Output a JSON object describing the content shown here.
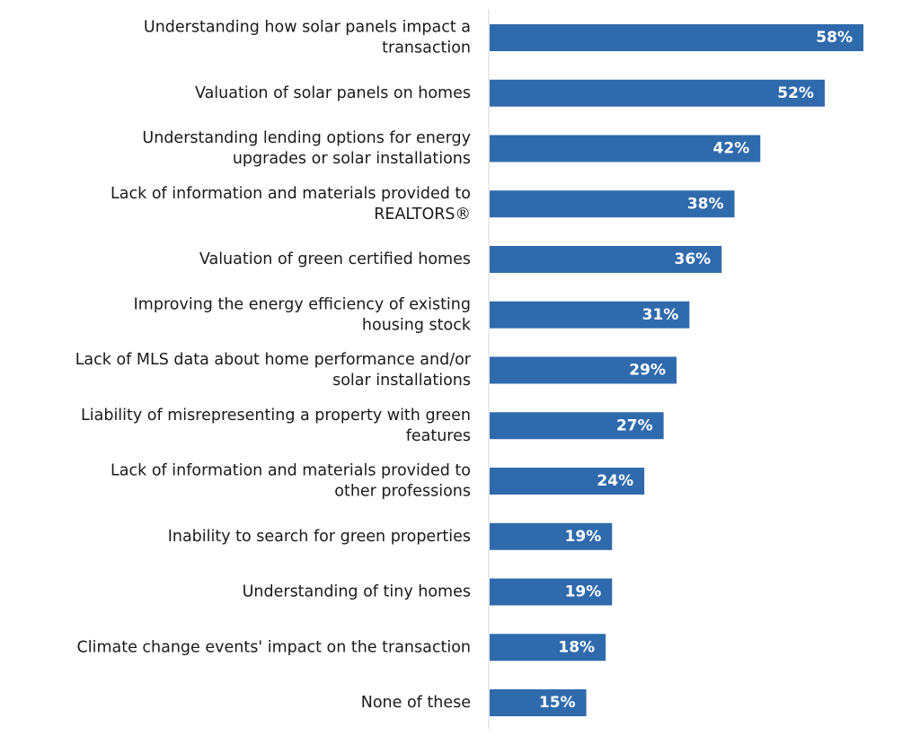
{
  "colors": {
    "bar": "#2f6aad",
    "axis": "#d4d4d4",
    "label_text": "#1a1a1a",
    "value_text": "#ffffff"
  },
  "chart_data": {
    "type": "bar",
    "orientation": "horizontal",
    "title": "",
    "xlabel": "",
    "ylabel": "",
    "xlim": [
      0,
      58
    ],
    "grid": false,
    "legend": "none",
    "value_suffix": "%",
    "categories": [
      [
        "Understanding how solar panels impact a",
        "transaction"
      ],
      [
        "Valuation of solar panels on homes"
      ],
      [
        "Understanding lending options for energy",
        "upgrades or solar installations"
      ],
      [
        "Lack of information and materials provided to",
        "REALTORS®"
      ],
      [
        "Valuation of green certified homes"
      ],
      [
        "Improving the energy efficiency of existing",
        "housing stock"
      ],
      [
        "Lack of MLS data about home performance and/or",
        "solar installations"
      ],
      [
        "Liability of misrepresenting a property with green",
        "features"
      ],
      [
        "Lack of information and materials provided to",
        "other professions"
      ],
      [
        "Inability to search for green properties"
      ],
      [
        "Understanding of tiny homes"
      ],
      [
        "Climate change events' impact on the transaction"
      ],
      [
        "None of these"
      ]
    ],
    "values": [
      58,
      52,
      42,
      38,
      36,
      31,
      29,
      27,
      24,
      19,
      19,
      18,
      15
    ],
    "value_labels": [
      "58%",
      "52%",
      "42%",
      "38%",
      "36%",
      "31%",
      "29%",
      "27%",
      "24%",
      "19%",
      "19%",
      "18%",
      "15%"
    ]
  }
}
